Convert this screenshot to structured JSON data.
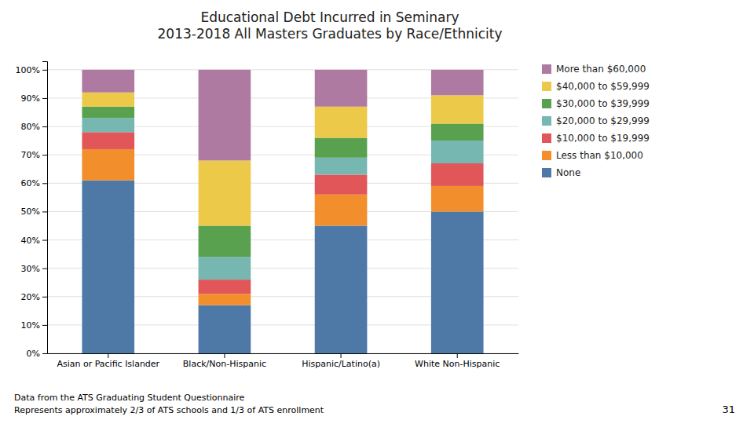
{
  "chart_data": {
    "type": "bar",
    "stacked": true,
    "title": "Educational Debt Incurred in Seminary\n2013-2018 All Masters Graduates by Race/Ethnicity",
    "categories": [
      "Asian or Pacific Islander",
      "Black/Non-Hispanic",
      "Hispanic/Latino(a)",
      "White Non-Hispanic"
    ],
    "series": [
      {
        "name": "None",
        "values": [
          61,
          17,
          45,
          50
        ]
      },
      {
        "name": "Less than $10,000",
        "values": [
          11,
          4,
          11,
          9
        ]
      },
      {
        "name": "$10,000 to $19,999",
        "values": [
          6,
          5,
          7,
          8
        ]
      },
      {
        "name": "$20,000 to $29,999",
        "values": [
          5,
          8,
          6,
          8
        ]
      },
      {
        "name": "$30,000 to $39,999",
        "values": [
          4,
          11,
          7,
          6
        ]
      },
      {
        "name": "$40,000 to $59,999",
        "values": [
          5,
          23,
          11,
          10
        ]
      },
      {
        "name": "More than $60,000",
        "values": [
          8,
          32,
          13,
          9
        ]
      }
    ],
    "ylim": [
      0,
      103
    ],
    "yticks": [
      {
        "value": 0,
        "label": "0%"
      },
      {
        "value": 10,
        "label": "10%"
      },
      {
        "value": 20,
        "label": "20%"
      },
      {
        "value": 30,
        "label": "30%"
      },
      {
        "value": 40,
        "label": "40%"
      },
      {
        "value": 50,
        "label": "50%"
      },
      {
        "value": 60,
        "label": "60%"
      },
      {
        "value": 70,
        "label": "70%"
      },
      {
        "value": 80,
        "label": "80%"
      },
      {
        "value": 90,
        "label": "90%"
      },
      {
        "value": 100,
        "label": "100%"
      }
    ],
    "grid": true,
    "legend": "right",
    "annotations": [
      "Data from the ATS Graduating Student Questionnaire",
      "Represents approximately 2/3 of ATS schools and 1/3 of ATS enrollment",
      "31"
    ]
  }
}
